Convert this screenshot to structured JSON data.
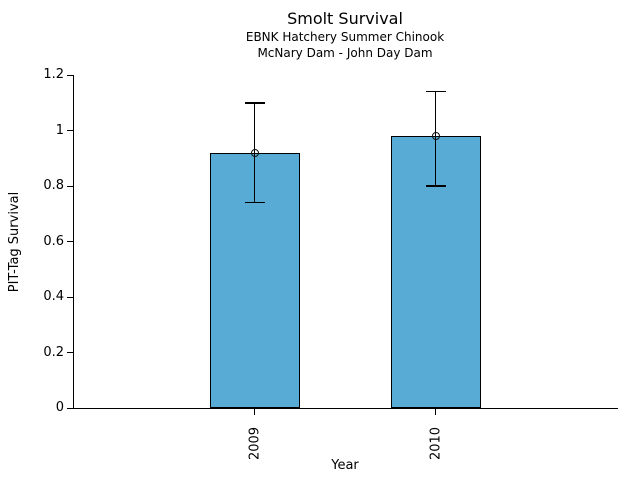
{
  "chart_data": {
    "type": "bar",
    "title": "Smolt Survival",
    "subtitle1": "EBNK Hatchery Summer Chinook",
    "subtitle2": "McNary Dam - John Day Dam",
    "xlabel": "Year",
    "ylabel": "PIT-Tag Survival",
    "categories": [
      "2009",
      "2010"
    ],
    "values": [
      0.92,
      0.98
    ],
    "error_low": [
      0.74,
      0.8
    ],
    "error_high": [
      1.1,
      1.14
    ],
    "ylim": [
      0,
      1.2
    ],
    "yticks": [
      0,
      0.2,
      0.4,
      0.6,
      0.8,
      1.0,
      1.2
    ],
    "ytick_labels": [
      "0",
      "0.2",
      "0.4",
      "0.6",
      "0.8",
      "1",
      "1.2"
    ],
    "marker": "open-circle",
    "bar_color": "#58ABD4",
    "bar_edge_color": "#000000",
    "axis_color": "#000000",
    "grid": false,
    "legend": "none"
  }
}
